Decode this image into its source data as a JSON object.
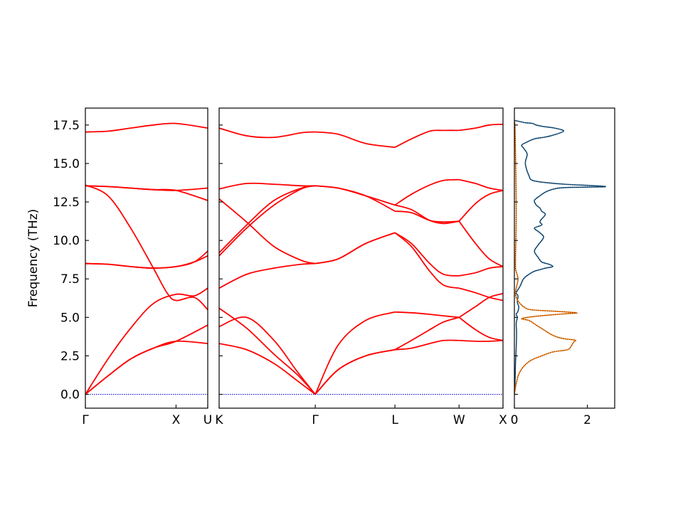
{
  "chart_data": [
    {
      "type": "line",
      "panel": "band-structure-1",
      "xtick_labels": [
        "Γ",
        "X",
        "U"
      ],
      "ylabel": "Frequency (THz)",
      "yticks": [
        0.0,
        2.5,
        5.0,
        7.5,
        10.0,
        12.5,
        15.0,
        17.5
      ],
      "ytick_labels": [
        "0.0",
        "2.5",
        "5.0",
        "7.5",
        "10.0",
        "12.5",
        "15.0",
        "17.5"
      ],
      "ylim": [
        -0.9,
        18.6
      ],
      "xlim": [
        0,
        1.35
      ],
      "xticks": [
        0,
        1.0,
        1.35
      ],
      "line_color": "#ff0000",
      "zero_line_color": "#0000cc",
      "series": [
        {
          "x": [
            0,
            0.25,
            0.5,
            0.75,
            1.0,
            1.35
          ],
          "values": [
            0,
            1.2,
            2.3,
            3.0,
            3.45,
            3.3
          ]
        },
        {
          "x": [
            0,
            0.25,
            0.5,
            0.75,
            1.0,
            1.35
          ],
          "values": [
            0,
            1.2,
            2.3,
            3.0,
            3.45,
            4.5
          ]
        },
        {
          "x": [
            0,
            0.25,
            0.5,
            0.75,
            1.0,
            1.2,
            1.35
          ],
          "values": [
            0,
            2.3,
            4.3,
            5.9,
            6.5,
            6.4,
            6.9
          ]
        },
        {
          "x": [
            0,
            0.25,
            0.5,
            0.75,
            0.9,
            1.0,
            1.2,
            1.35
          ],
          "values": [
            13.6,
            12.9,
            10.8,
            8.2,
            6.6,
            6.1,
            6.3,
            5.5
          ]
        },
        {
          "x": [
            0,
            0.25,
            0.5,
            0.75,
            1.0,
            1.2,
            1.35
          ],
          "values": [
            8.5,
            8.45,
            8.3,
            8.2,
            8.3,
            8.6,
            9.3
          ]
        },
        {
          "x": [
            0,
            0.25,
            0.5,
            0.75,
            1.0,
            1.2,
            1.35
          ],
          "values": [
            8.5,
            8.45,
            8.3,
            8.2,
            8.3,
            8.6,
            9.0
          ]
        },
        {
          "x": [
            0,
            0.25,
            0.5,
            0.75,
            1.0,
            1.35
          ],
          "values": [
            13.55,
            13.5,
            13.4,
            13.3,
            13.25,
            12.6
          ]
        },
        {
          "x": [
            0,
            0.25,
            0.5,
            0.75,
            1.0,
            1.35
          ],
          "values": [
            13.55,
            13.5,
            13.4,
            13.3,
            13.25,
            13.4
          ]
        },
        {
          "x": [
            0,
            0.25,
            0.5,
            0.75,
            1.0,
            1.35
          ],
          "values": [
            17.05,
            17.1,
            17.3,
            17.5,
            17.6,
            17.3
          ]
        },
        {
          "x": [
            0,
            1.35
          ],
          "values": [
            0,
            0
          ],
          "style": "zero"
        }
      ]
    },
    {
      "type": "line",
      "panel": "band-structure-2",
      "xtick_labels": [
        "K",
        "Γ",
        "L",
        "W",
        "X"
      ],
      "ylim": [
        -0.9,
        18.6
      ],
      "xlim": [
        0,
        3.1
      ],
      "xticks": [
        0,
        1.05,
        1.92,
        2.62,
        3.1
      ],
      "line_color": "#ff0000",
      "zero_line_color": "#0000cc",
      "series": [
        {
          "x": [
            0,
            0.3,
            0.6,
            0.85,
            1.05
          ],
          "values": [
            3.3,
            2.9,
            2.0,
            0.9,
            0
          ]
        },
        {
          "x": [
            0,
            0.3,
            0.6,
            0.85,
            1.05
          ],
          "values": [
            5.6,
            4.3,
            2.6,
            1.3,
            0
          ]
        },
        {
          "x": [
            0,
            0.3,
            0.6,
            0.85,
            1.05
          ],
          "values": [
            4.4,
            5.0,
            3.5,
            1.5,
            0
          ]
        },
        {
          "x": [
            0,
            0.3,
            0.6,
            0.9,
            1.05
          ],
          "values": [
            6.9,
            7.8,
            8.2,
            8.45,
            8.5
          ]
        },
        {
          "x": [
            0,
            0.3,
            0.6,
            0.9,
            1.05
          ],
          "values": [
            9.0,
            10.8,
            12.3,
            13.35,
            13.55
          ]
        },
        {
          "x": [
            0,
            0.3,
            0.6,
            0.9,
            1.05
          ],
          "values": [
            9.2,
            11.0,
            12.6,
            13.4,
            13.55
          ]
        },
        {
          "x": [
            0,
            0.3,
            0.6,
            0.9,
            1.05
          ],
          "values": [
            12.7,
            11.2,
            9.6,
            8.7,
            8.5
          ]
        },
        {
          "x": [
            0,
            0.3,
            0.6,
            0.9,
            1.05
          ],
          "values": [
            13.35,
            13.7,
            13.65,
            13.55,
            13.55
          ]
        },
        {
          "x": [
            0,
            0.3,
            0.6,
            0.9,
            1.05
          ],
          "values": [
            17.3,
            16.8,
            16.7,
            17.0,
            17.05
          ]
        },
        {
          "x": [
            1.05,
            1.3,
            1.6,
            1.92
          ],
          "values": [
            0,
            1.6,
            2.5,
            2.9
          ]
        },
        {
          "x": [
            1.05,
            1.3,
            1.6,
            1.92
          ],
          "values": [
            0,
            1.6,
            2.5,
            2.9
          ]
        },
        {
          "x": [
            1.05,
            1.3,
            1.6,
            1.92
          ],
          "values": [
            0,
            3.2,
            4.8,
            5.35
          ]
        },
        {
          "x": [
            1.05,
            1.3,
            1.6,
            1.92
          ],
          "values": [
            8.5,
            8.8,
            9.8,
            10.5
          ]
        },
        {
          "x": [
            1.05,
            1.3,
            1.6,
            1.92
          ],
          "values": [
            8.5,
            8.8,
            9.8,
            10.5
          ]
        },
        {
          "x": [
            1.05,
            1.3,
            1.6,
            1.92
          ],
          "values": [
            13.55,
            13.4,
            12.9,
            11.9
          ]
        },
        {
          "x": [
            1.05,
            1.3,
            1.6,
            1.92
          ],
          "values": [
            13.55,
            13.4,
            12.9,
            12.3
          ]
        },
        {
          "x": [
            1.05,
            1.3,
            1.6,
            1.92
          ],
          "values": [
            17.05,
            16.9,
            16.3,
            16.05
          ]
        },
        {
          "x": [
            1.92,
            2.1,
            2.3,
            2.45,
            2.62
          ],
          "values": [
            2.9,
            3.0,
            3.3,
            3.5,
            3.5
          ]
        },
        {
          "x": [
            1.92,
            2.1,
            2.3,
            2.45,
            2.62
          ],
          "values": [
            2.9,
            3.5,
            4.2,
            4.7,
            5.0
          ]
        },
        {
          "x": [
            1.92,
            2.1,
            2.3,
            2.45,
            2.62
          ],
          "values": [
            5.35,
            5.3,
            5.2,
            5.1,
            5.0
          ]
        },
        {
          "x": [
            1.92,
            2.1,
            2.3,
            2.45,
            2.62
          ],
          "values": [
            10.5,
            9.8,
            8.5,
            7.8,
            7.7
          ]
        },
        {
          "x": [
            1.92,
            2.1,
            2.3,
            2.45,
            2.62
          ],
          "values": [
            10.5,
            9.6,
            8.0,
            7.1,
            6.9
          ]
        },
        {
          "x": [
            1.92,
            2.1,
            2.3,
            2.45,
            2.62
          ],
          "values": [
            11.9,
            11.8,
            11.3,
            11.2,
            11.25
          ]
        },
        {
          "x": [
            1.92,
            2.1,
            2.3,
            2.45,
            2.62
          ],
          "values": [
            12.3,
            12.0,
            11.3,
            11.1,
            11.25
          ]
        },
        {
          "x": [
            1.92,
            2.1,
            2.3,
            2.45,
            2.62
          ],
          "values": [
            12.3,
            13.0,
            13.6,
            13.9,
            13.95
          ]
        },
        {
          "x": [
            1.92,
            2.1,
            2.3,
            2.45,
            2.62
          ],
          "values": [
            16.05,
            16.6,
            17.1,
            17.15,
            17.15
          ]
        },
        {
          "x": [
            2.62,
            2.8,
            2.95,
            3.1
          ],
          "values": [
            3.5,
            3.45,
            3.45,
            3.5
          ]
        },
        {
          "x": [
            2.62,
            2.8,
            2.95,
            3.1
          ],
          "values": [
            5.0,
            4.2,
            3.7,
            3.5
          ]
        },
        {
          "x": [
            2.62,
            2.8,
            2.95,
            3.1
          ],
          "values": [
            5.0,
            5.7,
            6.3,
            6.55
          ]
        },
        {
          "x": [
            2.62,
            2.8,
            2.95,
            3.1
          ],
          "values": [
            6.9,
            6.6,
            6.3,
            6.1
          ]
        },
        {
          "x": [
            2.62,
            2.8,
            2.95,
            3.1
          ],
          "values": [
            7.7,
            7.9,
            8.2,
            8.3
          ]
        },
        {
          "x": [
            2.62,
            2.8,
            2.95,
            3.1
          ],
          "values": [
            11.25,
            9.8,
            8.8,
            8.3
          ]
        },
        {
          "x": [
            2.62,
            2.8,
            2.95,
            3.1
          ],
          "values": [
            11.25,
            12.4,
            13.0,
            13.25
          ]
        },
        {
          "x": [
            2.62,
            2.8,
            2.95,
            3.1
          ],
          "values": [
            13.95,
            13.7,
            13.4,
            13.25
          ]
        },
        {
          "x": [
            2.62,
            2.8,
            2.95,
            3.1
          ],
          "values": [
            17.15,
            17.3,
            17.5,
            17.55
          ]
        },
        {
          "x": [
            0,
            3.1
          ],
          "values": [
            0,
            0
          ],
          "style": "zero"
        }
      ]
    },
    {
      "type": "line",
      "panel": "density-of-states",
      "xticks": [
        0,
        2
      ],
      "xtick_labels": [
        "0",
        "2"
      ],
      "xlim": [
        0,
        2.75
      ],
      "ylim": [
        -0.9,
        18.6
      ],
      "series": [
        {
          "color": "#1f5f8f",
          "x": [
            0.0,
            0.02,
            0.03,
            0.05,
            0.06,
            0.05,
            0.08,
            0.05,
            0.1,
            0.12,
            0.08,
            0.1,
            0.05,
            0.15,
            0.25,
            0.4,
            0.55,
            0.7,
            0.85,
            1.05,
            0.95,
            0.75,
            0.65,
            0.55,
            0.65,
            0.8,
            0.7,
            0.55,
            0.75,
            0.7,
            0.75,
            0.85,
            0.75,
            0.7,
            0.6,
            0.55,
            0.7,
            0.9,
            1.2,
            1.6,
            2.5,
            1.4,
            0.9,
            0.5,
            0.4,
            0.3,
            0.35,
            0.25,
            0.2,
            0.35,
            0.55,
            0.8,
            1.0,
            1.35,
            1.1,
            0.8,
            0.6,
            0.5,
            0.3,
            0.2,
            0.0
          ],
          "values": [
            0.0,
            1.0,
            2.0,
            3.0,
            4.0,
            4.6,
            5.0,
            5.2,
            5.4,
            5.7,
            6.0,
            6.4,
            6.6,
            7.0,
            7.5,
            7.8,
            8.0,
            8.1,
            8.2,
            8.3,
            8.45,
            8.6,
            8.9,
            9.3,
            9.7,
            10.2,
            10.5,
            10.8,
            11.0,
            11.2,
            11.4,
            11.7,
            11.9,
            12.1,
            12.3,
            12.6,
            12.9,
            13.2,
            13.4,
            13.45,
            13.5,
            13.65,
            13.75,
            13.9,
            14.2,
            15.0,
            15.6,
            16.0,
            16.2,
            16.4,
            16.6,
            16.7,
            16.8,
            17.1,
            17.3,
            17.4,
            17.5,
            17.6,
            17.65,
            17.7,
            17.8
          ]
        },
        {
          "color": "#ff7f0e",
          "x": [
            0.0,
            0.05,
            0.12,
            0.25,
            0.45,
            0.75,
            1.05,
            1.35,
            1.45,
            1.5,
            1.55,
            1.6,
            1.65,
            1.68,
            1.6,
            1.4,
            1.2,
            1.0,
            0.8,
            0.6,
            0.4,
            0.2,
            0.35,
            0.7,
            0.95,
            1.2,
            1.5,
            1.7,
            1.1,
            0.45,
            0.25,
            0.12,
            0.05,
            0.03,
            0.06,
            0.1,
            0.05,
            0.03,
            0.05,
            0.02,
            0.0
          ],
          "values": [
            0.0,
            0.7,
            1.3,
            1.8,
            2.2,
            2.5,
            2.75,
            2.85,
            2.9,
            2.95,
            3.1,
            3.3,
            3.45,
            3.5,
            3.55,
            3.6,
            3.7,
            3.9,
            4.2,
            4.5,
            4.8,
            4.9,
            5.0,
            5.1,
            5.15,
            5.2,
            5.25,
            5.3,
            5.4,
            5.5,
            5.7,
            6.0,
            6.3,
            6.6,
            7.0,
            7.5,
            8.0,
            8.5,
            12.0,
            17.0,
            17.8
          ]
        }
      ]
    }
  ]
}
